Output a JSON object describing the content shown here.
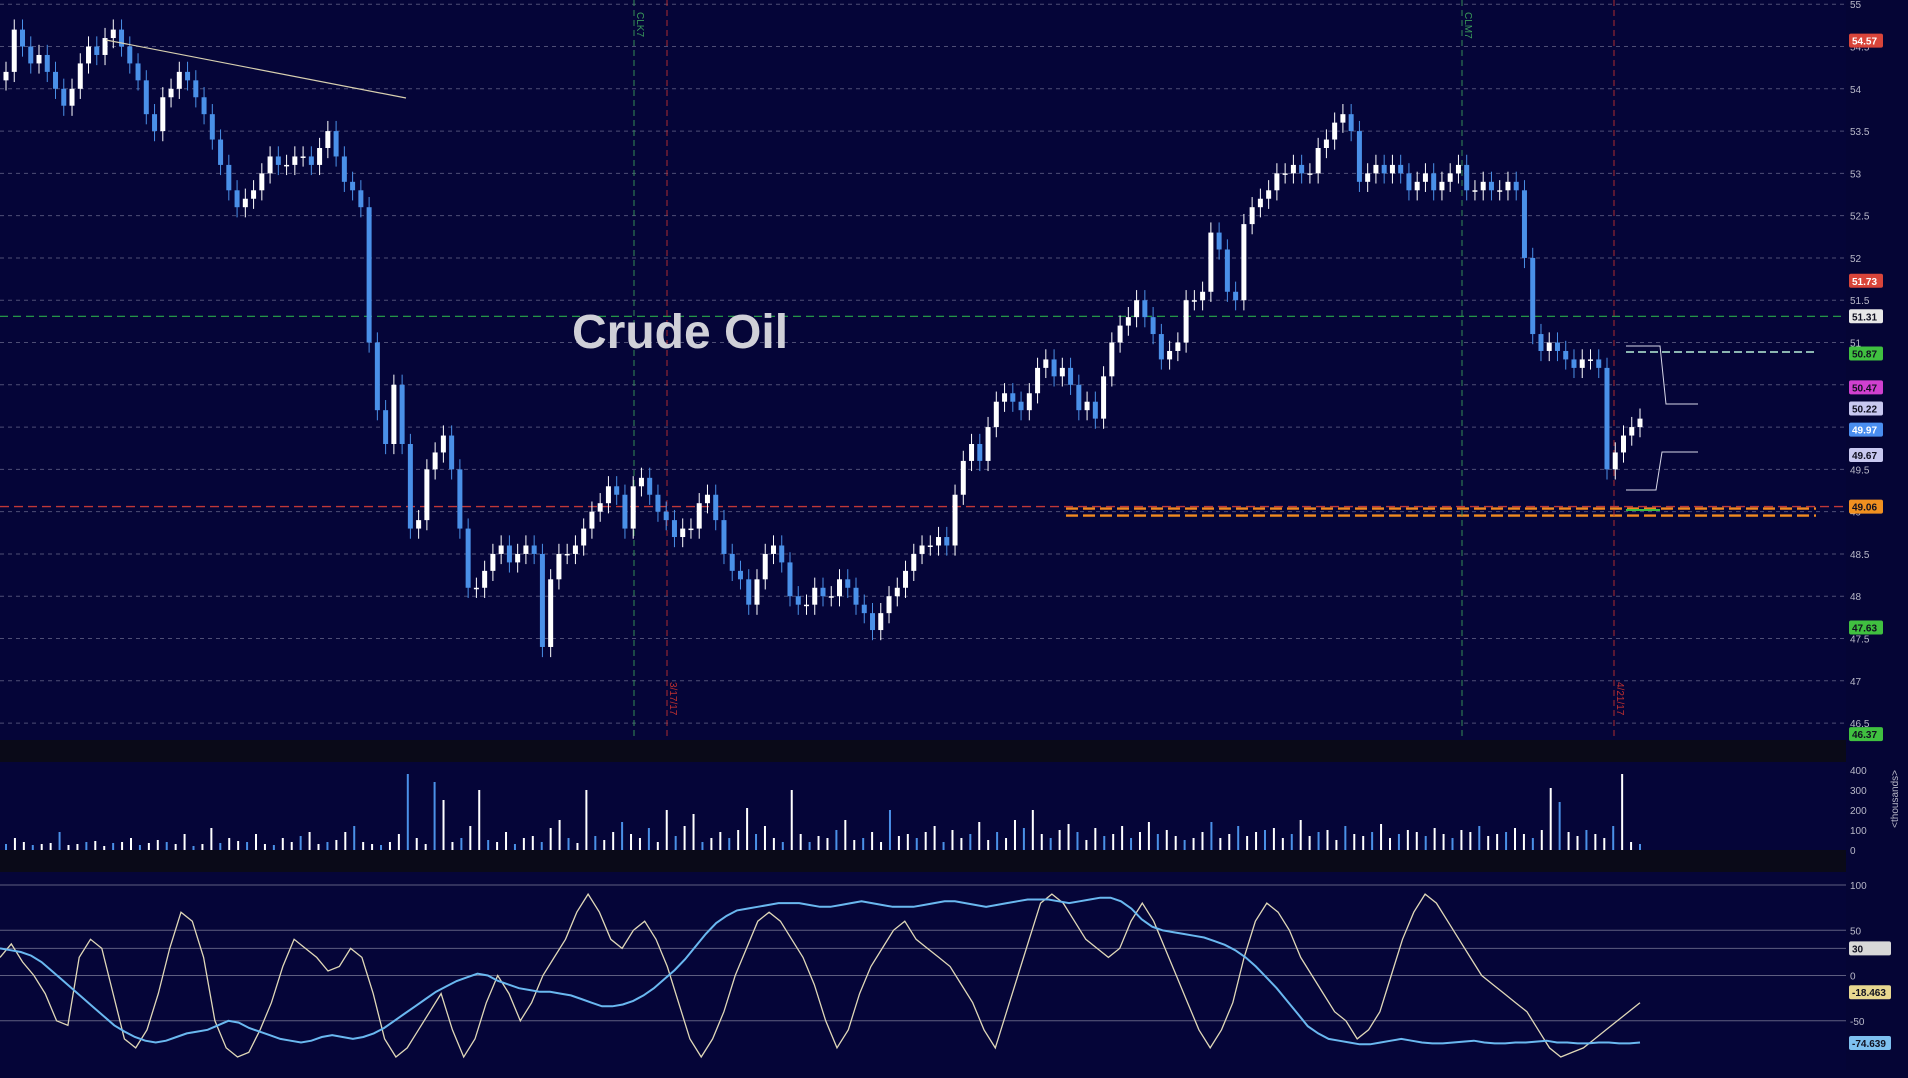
{
  "chart_data": [
    {
      "type": "candlestick",
      "title": "Crude Oil",
      "ylim": [
        46.3,
        55.05
      ],
      "y_ticks": [
        "55",
        "54.5",
        "54",
        "53.5",
        "53",
        "52.5",
        "52",
        "51.5",
        "51",
        "50.5",
        "50",
        "49.5",
        "49",
        "48.5",
        "48",
        "47.5",
        "47",
        "46.5"
      ],
      "price_badges": [
        {
          "label": "54.57",
          "value": 54.57,
          "color": "#d9453a"
        },
        {
          "label": "51.73",
          "value": 51.73,
          "color": "#d9453a"
        },
        {
          "label": "51.31",
          "value": 51.31,
          "color": "#e8e8e8"
        },
        {
          "label": "50.87",
          "value": 50.87,
          "color": "#40c040"
        },
        {
          "label": "50.47",
          "value": 50.47,
          "color": "#d040d0"
        },
        {
          "label": "50.22",
          "value": 50.22,
          "color": "#c8c8f0"
        },
        {
          "label": "49.97",
          "value": 49.97,
          "color": "#4a8ef0"
        },
        {
          "label": "49.67",
          "value": 49.67,
          "color": "#c8c8f0"
        },
        {
          "label": "49.06",
          "value": 49.06,
          "color": "#f09020"
        },
        {
          "label": "47.63",
          "value": 47.63,
          "color": "#40c040"
        },
        {
          "label": "46.37",
          "value": 46.37,
          "color": "#40c040"
        }
      ],
      "vertical_markers": [
        {
          "label": "CLK7",
          "color": "#3a9a5a"
        },
        {
          "label": "3/17/17",
          "color": "#c03030"
        },
        {
          "label": "CLM7",
          "color": "#3a9a5a"
        },
        {
          "label": "4/21/17",
          "color": "#c03030"
        }
      ],
      "reference_lines": [
        {
          "name": "green-dashed",
          "value": 51.31
        },
        {
          "name": "red-dashed",
          "value": 49.06
        }
      ],
      "close_series": [
        54.2,
        54.7,
        54.5,
        54.3,
        54.4,
        54.2,
        54.0,
        53.8,
        54.0,
        54.3,
        54.5,
        54.4,
        54.6,
        54.7,
        54.5,
        54.3,
        54.1,
        53.7,
        53.5,
        53.9,
        54.0,
        54.2,
        54.1,
        53.9,
        53.7,
        53.4,
        53.1,
        52.8,
        52.6,
        52.7,
        52.8,
        53.0,
        53.2,
        53.1,
        53.1,
        53.2,
        53.2,
        53.1,
        53.3,
        53.5,
        53.2,
        52.9,
        52.8,
        52.6,
        51.0,
        50.2,
        49.8,
        50.5,
        49.8,
        48.8,
        48.9,
        49.5,
        49.7,
        49.9,
        49.5,
        48.8,
        48.1,
        48.1,
        48.3,
        48.5,
        48.6,
        48.4,
        48.5,
        48.6,
        48.5,
        47.4,
        48.2,
        48.5,
        48.5,
        48.6,
        48.8,
        49.0,
        49.1,
        49.3,
        49.2,
        48.8,
        49.3,
        49.4,
        49.2,
        49.0,
        48.9,
        48.7,
        48.8,
        48.8,
        49.1,
        49.2,
        48.9,
        48.5,
        48.3,
        48.2,
        47.9,
        48.2,
        48.5,
        48.6,
        48.4,
        48.0,
        47.9,
        47.9,
        48.1,
        48.0,
        48.0,
        48.2,
        48.1,
        47.9,
        47.8,
        47.6,
        47.8,
        48.0,
        48.1,
        48.3,
        48.5,
        48.6,
        48.6,
        48.7,
        48.6,
        49.2,
        49.6,
        49.8,
        49.6,
        50.0,
        50.3,
        50.4,
        50.3,
        50.2,
        50.4,
        50.7,
        50.8,
        50.6,
        50.7,
        50.5,
        50.2,
        50.3,
        50.1,
        50.6,
        51.0,
        51.2,
        51.3,
        51.5,
        51.3,
        51.1,
        50.8,
        50.9,
        51.0,
        51.5,
        51.5,
        51.6,
        52.3,
        52.1,
        51.6,
        51.5,
        52.4,
        52.6,
        52.7,
        52.8,
        53.0,
        53.0,
        53.1,
        53.0,
        53.0,
        53.3,
        53.4,
        53.6,
        53.7,
        53.5,
        52.9,
        53.0,
        53.1,
        53.0,
        53.1,
        53.0,
        52.8,
        52.9,
        53.0,
        52.8,
        52.9,
        53.0,
        53.1,
        52.8,
        52.8,
        52.9,
        52.8,
        52.8,
        52.9,
        52.8,
        52.0,
        51.1,
        50.9,
        51.0,
        50.9,
        50.8,
        50.7,
        50.8,
        50.8,
        50.7,
        49.5,
        49.7,
        49.9,
        50.0,
        50.1
      ],
      "volume_ylim": [
        0,
        420
      ],
      "volume_ticks": [
        "400",
        "300",
        "200",
        "100",
        "0"
      ],
      "volume_unit_label": "<thousands>",
      "volume_values": [
        30,
        60,
        40,
        25,
        30,
        35,
        90,
        25,
        30,
        40,
        45,
        20,
        35,
        40,
        60,
        25,
        35,
        50,
        40,
        30,
        80,
        20,
        30,
        110,
        35,
        60,
        45,
        40,
        80,
        30,
        25,
        60,
        40,
        70,
        90,
        30,
        40,
        50,
        90,
        120,
        40,
        30,
        25,
        40,
        80,
        380,
        60,
        30,
        340,
        250,
        40,
        60,
        120,
        300,
        50,
        40,
        90,
        30,
        60,
        70,
        40,
        110,
        150,
        60,
        35,
        300,
        70,
        50,
        90,
        140,
        80,
        60,
        110,
        40,
        200,
        70,
        120,
        180,
        40,
        60,
        90,
        60,
        100,
        210,
        80,
        120,
        60,
        40,
        300,
        80,
        40,
        70,
        60,
        100,
        150,
        50,
        60,
        90,
        40,
        200,
        70,
        80,
        60,
        90,
        120,
        40,
        100,
        60,
        80,
        140,
        50,
        90,
        60,
        150,
        110,
        200,
        80,
        60,
        100,
        130,
        90,
        50,
        110,
        70,
        80,
        120,
        60,
        90,
        140,
        80,
        100,
        70,
        50,
        60,
        90,
        140,
        60,
        80,
        120,
        70,
        90,
        100,
        110,
        60,
        80,
        150,
        70,
        90,
        100,
        50,
        120,
        80,
        70,
        90,
        130,
        60,
        80,
        100,
        90,
        70,
        110,
        80,
        60,
        100,
        90,
        120,
        70,
        80,
        90,
        110,
        80,
        60,
        100,
        310,
        240,
        90,
        70,
        100,
        80,
        60,
        120,
        380,
        40,
        30
      ],
      "stoch_ylim": [
        -100,
        110
      ],
      "stoch_ticks": [
        "100",
        "50",
        "30",
        "0",
        "-50"
      ],
      "stoch_badges": [
        {
          "label": "30",
          "value": 30,
          "color": "#d8d8d8"
        },
        {
          "label": "-18.463",
          "value": -18.463,
          "color": "#e8d890"
        },
        {
          "label": "-74.639",
          "value": -74.639,
          "color": "#7ec0f0"
        }
      ],
      "stoch_fast": [
        20,
        35,
        15,
        0,
        -20,
        -50,
        -55,
        20,
        40,
        30,
        -20,
        -70,
        -80,
        -60,
        -20,
        30,
        70,
        60,
        20,
        -50,
        -80,
        -90,
        -85,
        -60,
        -30,
        10,
        40,
        30,
        20,
        5,
        10,
        30,
        20,
        -20,
        -70,
        -90,
        -80,
        -60,
        -40,
        -20,
        -60,
        -90,
        -70,
        -30,
        0,
        -20,
        -50,
        -30,
        0,
        20,
        40,
        70,
        90,
        70,
        40,
        30,
        50,
        60,
        40,
        10,
        -30,
        -70,
        -90,
        -70,
        -40,
        0,
        30,
        60,
        70,
        60,
        40,
        20,
        -10,
        -50,
        -80,
        -60,
        -20,
        10,
        30,
        50,
        60,
        40,
        30,
        20,
        10,
        -10,
        -30,
        -60,
        -80,
        -40,
        0,
        40,
        80,
        90,
        80,
        60,
        40,
        30,
        20,
        30,
        60,
        80,
        60,
        30,
        0,
        -30,
        -60,
        -80,
        -60,
        -30,
        20,
        60,
        80,
        70,
        50,
        20,
        0,
        -20,
        -40,
        -50,
        -70,
        -60,
        -40,
        0,
        40,
        70,
        90,
        80,
        60,
        40,
        20,
        0,
        -10,
        -20,
        -30,
        -40,
        -60,
        -80,
        -90,
        -85,
        -80,
        -70,
        -60,
        -50,
        -40,
        -30
      ],
      "stoch_slow": [
        30,
        28,
        26,
        22,
        15,
        5,
        -5,
        -15,
        -25,
        -35,
        -45,
        -55,
        -62,
        -68,
        -72,
        -74,
        -72,
        -68,
        -64,
        -62,
        -60,
        -55,
        -50,
        -52,
        -58,
        -62,
        -66,
        -70,
        -72,
        -74,
        -72,
        -68,
        -66,
        -68,
        -70,
        -68,
        -64,
        -58,
        -50,
        -42,
        -34,
        -26,
        -18,
        -12,
        -6,
        -2,
        2,
        0,
        -6,
        -10,
        -14,
        -16,
        -18,
        -18,
        -20,
        -22,
        -26,
        -30,
        -34,
        -34,
        -32,
        -28,
        -22,
        -14,
        -4,
        6,
        18,
        32,
        46,
        58,
        66,
        72,
        74,
        76,
        78,
        80,
        80,
        80,
        78,
        76,
        76,
        78,
        80,
        82,
        80,
        78,
        76,
        76,
        76,
        78,
        80,
        82,
        82,
        80,
        78,
        76,
        78,
        80,
        82,
        84,
        84,
        84,
        82,
        80,
        82,
        84,
        86,
        86,
        82,
        74,
        62,
        54,
        50,
        48,
        46,
        44,
        42,
        38,
        34,
        28,
        20,
        10,
        -2,
        -14,
        -28,
        -42,
        -56,
        -64,
        -70,
        -72,
        -74,
        -76,
        -76,
        -74,
        -72,
        -70,
        -72,
        -74,
        -75,
        -75,
        -74,
        -73,
        -72,
        -74,
        -75,
        -75,
        -74,
        -74,
        -73,
        -72,
        -74,
        -74,
        -75,
        -75,
        -74,
        -74,
        -75,
        -75,
        -74
      ]
    }
  ]
}
